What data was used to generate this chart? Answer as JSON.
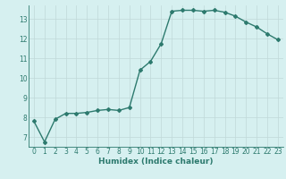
{
  "x": [
    0,
    1,
    2,
    3,
    4,
    5,
    6,
    7,
    8,
    9,
    10,
    11,
    12,
    13,
    14,
    15,
    16,
    17,
    18,
    19,
    20,
    21,
    22,
    23
  ],
  "y": [
    7.8,
    6.75,
    7.9,
    8.2,
    8.2,
    8.25,
    8.35,
    8.4,
    8.35,
    8.5,
    10.4,
    10.85,
    11.75,
    13.4,
    13.45,
    13.45,
    13.4,
    13.45,
    13.35,
    13.15,
    12.85,
    12.6,
    12.25,
    11.95
  ],
  "xlabel": "Humidex (Indice chaleur)",
  "xlim": [
    -0.5,
    23.5
  ],
  "ylim": [
    6.5,
    13.7
  ],
  "yticks": [
    7,
    8,
    9,
    10,
    11,
    12,
    13
  ],
  "xticks": [
    0,
    1,
    2,
    3,
    4,
    5,
    6,
    7,
    8,
    9,
    10,
    11,
    12,
    13,
    14,
    15,
    16,
    17,
    18,
    19,
    20,
    21,
    22,
    23
  ],
  "line_color": "#2d7a6e",
  "marker": "D",
  "marker_size": 2.0,
  "line_width": 1.0,
  "bg_color": "#d6f0f0",
  "grid_color": "#c0d8d8",
  "tick_label_color": "#2d7a6e",
  "axis_label_color": "#2d7a6e",
  "font_size_ticks": 5.5,
  "font_size_xlabel": 6.5
}
